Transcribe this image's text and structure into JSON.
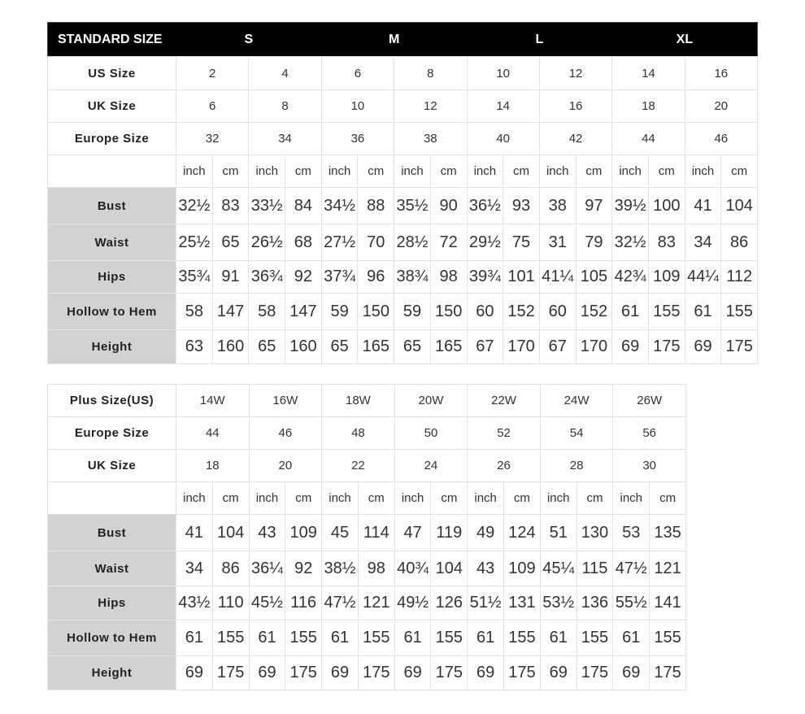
{
  "standard": {
    "header": {
      "title": "STANDARD SIZE",
      "sizes": [
        "S",
        "M",
        "L",
        "XL"
      ]
    },
    "size_rows": [
      {
        "label": "US Size",
        "values": [
          "2",
          "4",
          "6",
          "8",
          "10",
          "12",
          "14",
          "16"
        ]
      },
      {
        "label": "UK Size",
        "values": [
          "6",
          "8",
          "10",
          "12",
          "14",
          "16",
          "18",
          "20"
        ]
      },
      {
        "label": "Europe Size",
        "values": [
          "32",
          "34",
          "36",
          "38",
          "40",
          "42",
          "44",
          "46"
        ]
      }
    ],
    "units": [
      "inch",
      "cm"
    ],
    "measure_rows": [
      {
        "label": "Bust",
        "values": [
          "32½",
          "83",
          "33½",
          "84",
          "34½",
          "88",
          "35½",
          "90",
          "36½",
          "93",
          "38",
          "97",
          "39½",
          "100",
          "41",
          "104"
        ]
      },
      {
        "label": "Waist",
        "values": [
          "25½",
          "65",
          "26½",
          "68",
          "27½",
          "70",
          "28½",
          "72",
          "29½",
          "75",
          "31",
          "79",
          "32½",
          "83",
          "34",
          "86"
        ]
      },
      {
        "label": "Hips",
        "values": [
          "35¾",
          "91",
          "36¾",
          "92",
          "37¾",
          "96",
          "38¾",
          "98",
          "39¾",
          "101",
          "41¼",
          "105",
          "42¾",
          "109",
          "44¼",
          "112"
        ]
      },
      {
        "label": "Hollow to Hem",
        "values": [
          "58",
          "147",
          "58",
          "147",
          "59",
          "150",
          "59",
          "150",
          "60",
          "152",
          "60",
          "152",
          "61",
          "155",
          "61",
          "155"
        ]
      },
      {
        "label": "Height",
        "values": [
          "63",
          "160",
          "65",
          "160",
          "65",
          "165",
          "65",
          "165",
          "67",
          "170",
          "67",
          "170",
          "69",
          "175",
          "69",
          "175"
        ]
      }
    ]
  },
  "plus": {
    "size_rows": [
      {
        "label": "Plus Size(US)",
        "values": [
          "14W",
          "16W",
          "18W",
          "20W",
          "22W",
          "24W",
          "26W"
        ]
      },
      {
        "label": "Europe Size",
        "values": [
          "44",
          "46",
          "48",
          "50",
          "52",
          "54",
          "56"
        ]
      },
      {
        "label": "UK Size",
        "values": [
          "18",
          "20",
          "22",
          "24",
          "26",
          "28",
          "30"
        ]
      }
    ],
    "units": [
      "inch",
      "cm"
    ],
    "measure_rows": [
      {
        "label": "Bust",
        "values": [
          "41",
          "104",
          "43",
          "109",
          "45",
          "114",
          "47",
          "119",
          "49",
          "124",
          "51",
          "130",
          "53",
          "135"
        ]
      },
      {
        "label": "Waist",
        "values": [
          "34",
          "86",
          "36¼",
          "92",
          "38½",
          "98",
          "40¾",
          "104",
          "43",
          "109",
          "45¼",
          "115",
          "47½",
          "121"
        ]
      },
      {
        "label": "Hips",
        "values": [
          "43½",
          "110",
          "45½",
          "116",
          "47½",
          "121",
          "49½",
          "126",
          "51½",
          "131",
          "53½",
          "136",
          "55½",
          "141"
        ]
      },
      {
        "label": "Hollow to Hem",
        "values": [
          "61",
          "155",
          "61",
          "155",
          "61",
          "155",
          "61",
          "155",
          "61",
          "155",
          "61",
          "155",
          "61",
          "155"
        ]
      },
      {
        "label": "Height",
        "values": [
          "69",
          "175",
          "69",
          "175",
          "69",
          "175",
          "69",
          "175",
          "69",
          "175",
          "69",
          "175",
          "69",
          "175"
        ]
      }
    ]
  },
  "colors": {
    "header_bg": "#000000",
    "label_bg": "#d2d2d2"
  }
}
